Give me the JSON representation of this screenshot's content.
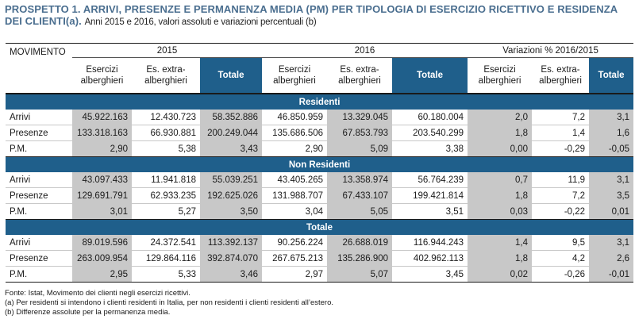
{
  "title": {
    "main": "PROSPETTO 1. ARRIVI, PRESENZE E PERMANENZA MEDIA (PM) PER TIPOLOGIA DI ESERCIZIO RICETTIVO E RESIDENZA DEI CLIENTI(a).",
    "sub": "Anni 2015 e 2016, valori assoluti e variazioni percentuali (b)"
  },
  "header": {
    "movimento": "MOVIMENTO",
    "year1": "2015",
    "year2": "2016",
    "variazioni": "Variazioni % 2016/2015",
    "col_alb": "Esercizi alberghieri",
    "col_extra": "Es. extra-alberghieri",
    "col_tot": "Totale"
  },
  "sections": [
    {
      "title": "Residenti",
      "rows": [
        {
          "label": "Arrivi",
          "values": [
            "45.922.163",
            "12.430.723",
            "58.352.886",
            "46.850.959",
            "13.329.045",
            "60.180.004",
            "2,0",
            "7,2",
            "3,1"
          ]
        },
        {
          "label": "Presenze",
          "values": [
            "133.318.163",
            "66.930.881",
            "200.249.044",
            "135.686.506",
            "67.853.793",
            "203.540.299",
            "1,8",
            "1,4",
            "1,6"
          ]
        },
        {
          "label": "P.M.",
          "values": [
            "2,90",
            "5,38",
            "3,43",
            "2,90",
            "5,09",
            "3,38",
            "0,00",
            "-0,29",
            "-0,05"
          ]
        }
      ]
    },
    {
      "title": "Non Residenti",
      "rows": [
        {
          "label": "Arrivi",
          "values": [
            "43.097.433",
            "11.941.818",
            "55.039.251",
            "43.405.265",
            "13.358.974",
            "56.764.239",
            "0,7",
            "11,9",
            "3,1"
          ]
        },
        {
          "label": "Presenze",
          "values": [
            "129.691.791",
            "62.933.235",
            "192.625.026",
            "131.988.707",
            "67.433.107",
            "199.421.814",
            "1,8",
            "7,2",
            "3,5"
          ]
        },
        {
          "label": "P.M.",
          "values": [
            "3,01",
            "5,27",
            "3,50",
            "3,04",
            "5,05",
            "3,51",
            "0,03",
            "-0,22",
            "0,01"
          ]
        }
      ]
    },
    {
      "title": "Totale",
      "rows": [
        {
          "label": "Arrivi",
          "values": [
            "89.019.596",
            "24.372.541",
            "113.392.137",
            "90.256.224",
            "26.688.019",
            "116.944.243",
            "1,4",
            "9,5",
            "3,1"
          ]
        },
        {
          "label": "Presenze",
          "values": [
            "263.009.954",
            "129.864.116",
            "392.874.070",
            "267.675.213",
            "135.286.900",
            "402.962.113",
            "1,8",
            "4,2",
            "2,6"
          ]
        },
        {
          "label": "P.M.",
          "values": [
            "2,95",
            "5,33",
            "3,46",
            "2,97",
            "5,07",
            "3,45",
            "0,02",
            "-0,26",
            "-0,01"
          ]
        }
      ]
    }
  ],
  "notes": [
    "Fonte: Istat, Movimento dei clienti negli esercizi ricettivi.",
    "(a) Per residenti si intendono i clienti residenti in Italia, per non residenti i clienti residenti all’estero.",
    "(b) Differenze assolute per la permanenza media."
  ],
  "colors": {
    "header_blue": "#1f5f8b",
    "title_blue": "#4a6e8f",
    "shade_gray": "#c8c8c8"
  }
}
